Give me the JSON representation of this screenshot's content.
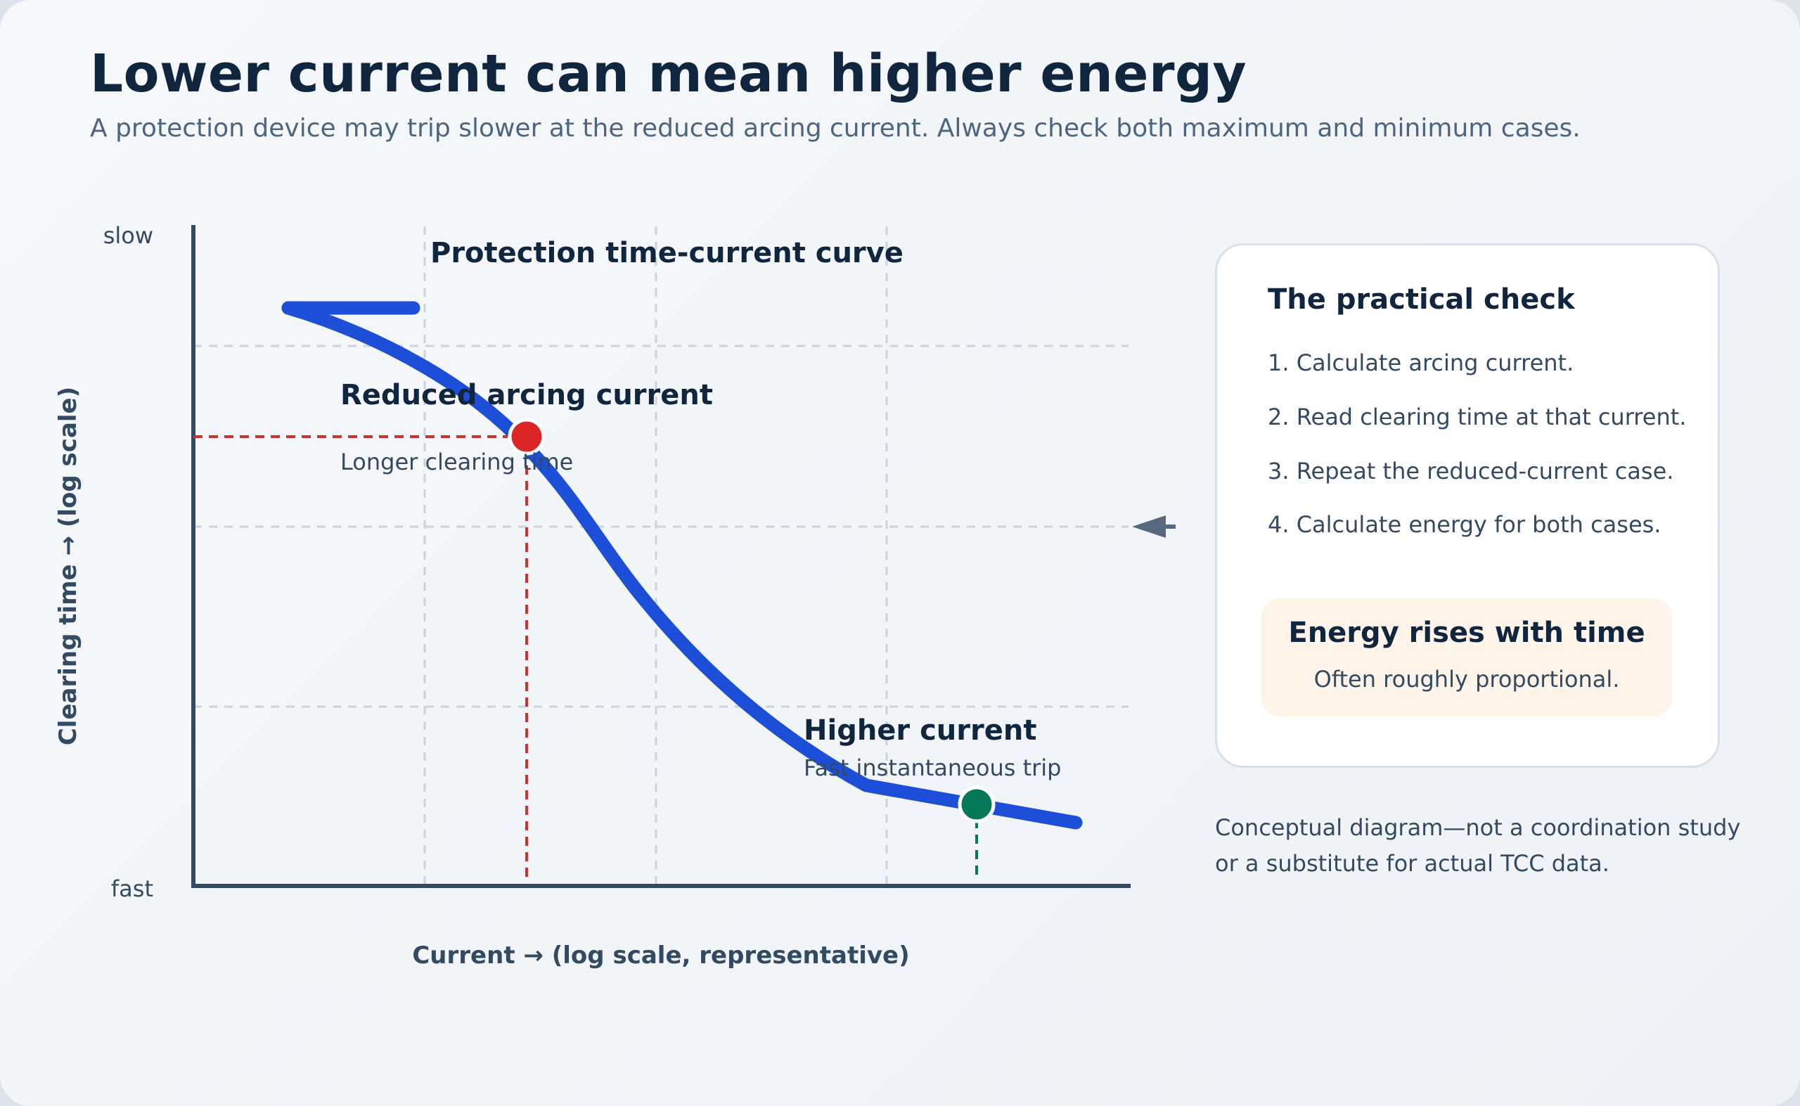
{
  "header": {
    "title": "Lower current can mean higher energy",
    "subtitle": "A protection device may trip slower at the reduced arcing current. Always check both maximum and minimum cases."
  },
  "diagram": {
    "curve_title": "Protection time-current curve",
    "y_axis_label": "Clearing time → (log scale)",
    "x_axis_label": "Current → (log scale, representative)",
    "y_tick_top": "slow",
    "y_tick_bottom": "fast",
    "reduced_point": {
      "label": "Reduced arcing current",
      "sublabel": "Longer clearing time",
      "color": "#dc2626"
    },
    "higher_point": {
      "label": "Higher current",
      "sublabel": "Fast instantaneous trip",
      "color": "#047857"
    },
    "curve_color": "#1d4ed8",
    "axis_color": "#334a63"
  },
  "panel": {
    "title": "The practical check",
    "steps": [
      "1. Calculate arcing current.",
      "2. Read clearing time at that current.",
      "3. Repeat the reduced-current case.",
      "4. Calculate energy for both cases."
    ],
    "callout_title": "Energy rises with time",
    "callout_text": "Often roughly proportional."
  },
  "note": "Conceptual diagram—not a coordination study or a substitute for actual TCC data."
}
